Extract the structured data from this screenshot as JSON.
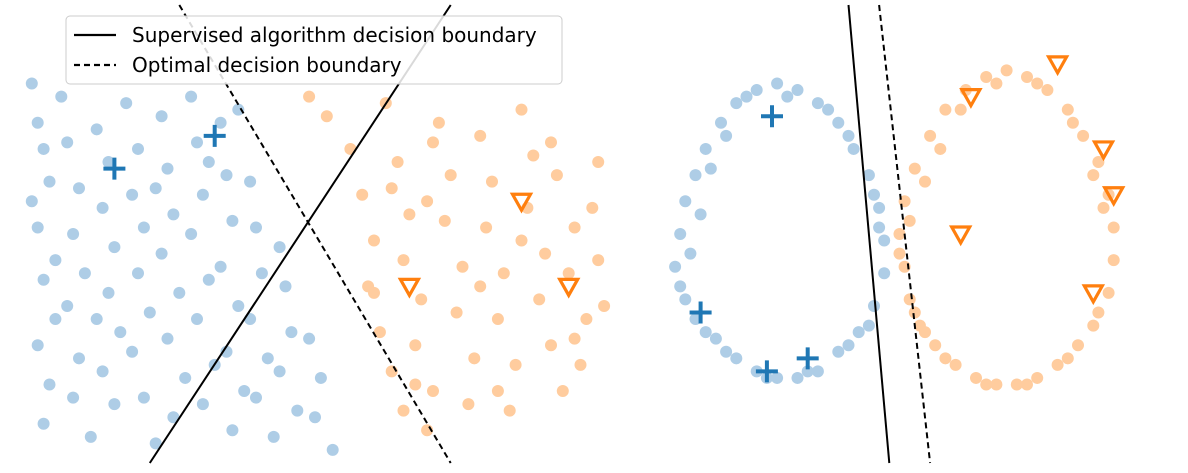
{
  "colors": {
    "class_a_light": "#aecde6",
    "class_a_dark": "#1f77b4",
    "class_b_light": "#ffcc9e",
    "class_b_dark": "#ff7f0e",
    "boundary": "#000000"
  },
  "legend": {
    "supervised_label": "Supervised algorithm decision boundary",
    "optimal_label": "Optimal decision boundary",
    "placement": "top-left of left panel"
  },
  "chart_data": [
    {
      "type": "scatter",
      "panel": "left",
      "grid": false,
      "axes_visible": false,
      "xlim": [
        0,
        10
      ],
      "ylim": [
        0,
        7
      ],
      "series": [
        {
          "marker": "circle",
          "class": "a-unlabeled",
          "points": [
            [
              0.2,
              5.8
            ],
            [
              0.3,
              5.2
            ],
            [
              0.4,
              4.8
            ],
            [
              0.5,
              4.3
            ],
            [
              0.3,
              3.6
            ],
            [
              0.4,
              2.8
            ],
            [
              0.6,
              2.2
            ],
            [
              0.3,
              1.8
            ],
            [
              0.5,
              1.2
            ],
            [
              0.4,
              0.6
            ],
            [
              0.7,
              5.6
            ],
            [
              0.8,
              4.9
            ],
            [
              1.0,
              4.2
            ],
            [
              0.9,
              3.5
            ],
            [
              1.1,
              2.9
            ],
            [
              0.8,
              2.4
            ],
            [
              1.0,
              1.6
            ],
            [
              0.9,
              1.0
            ],
            [
              1.2,
              0.4
            ],
            [
              1.3,
              5.1
            ],
            [
              1.5,
              4.6
            ],
            [
              1.4,
              3.9
            ],
            [
              1.6,
              3.3
            ],
            [
              1.5,
              2.6
            ],
            [
              1.7,
              2.0
            ],
            [
              1.4,
              1.4
            ],
            [
              1.6,
              0.9
            ],
            [
              1.8,
              5.5
            ],
            [
              2.0,
              4.8
            ],
            [
              1.9,
              4.1
            ],
            [
              2.1,
              3.6
            ],
            [
              2.0,
              2.9
            ],
            [
              2.2,
              2.3
            ],
            [
              1.9,
              1.7
            ],
            [
              2.1,
              1.0
            ],
            [
              2.3,
              0.3
            ],
            [
              2.4,
              5.3
            ],
            [
              2.5,
              4.5
            ],
            [
              2.6,
              3.8
            ],
            [
              2.4,
              3.2
            ],
            [
              2.7,
              2.6
            ],
            [
              2.5,
              1.9
            ],
            [
              2.8,
              1.3
            ],
            [
              2.6,
              0.7
            ],
            [
              2.9,
              5.6
            ],
            [
              3.0,
              4.9
            ],
            [
              3.1,
              4.1
            ],
            [
              2.9,
              3.5
            ],
            [
              3.2,
              2.8
            ],
            [
              3.0,
              2.2
            ],
            [
              3.3,
              1.5
            ],
            [
              3.1,
              0.9
            ],
            [
              3.4,
              5.2
            ],
            [
              3.5,
              4.4
            ],
            [
              3.6,
              3.7
            ],
            [
              3.4,
              3.0
            ],
            [
              3.7,
              2.4
            ],
            [
              3.5,
              1.7
            ],
            [
              3.8,
              1.1
            ],
            [
              3.6,
              0.5
            ],
            [
              3.9,
              4.3
            ],
            [
              4.0,
              3.6
            ],
            [
              4.1,
              2.9
            ],
            [
              3.9,
              2.2
            ],
            [
              4.2,
              1.6
            ],
            [
              4.0,
              1.0
            ],
            [
              4.3,
              0.4
            ],
            [
              4.4,
              3.3
            ],
            [
              4.5,
              2.7
            ],
            [
              4.6,
              2.0
            ],
            [
              4.4,
              1.4
            ],
            [
              4.7,
              0.8
            ],
            [
              4.9,
              1.9
            ],
            [
              5.1,
              1.3
            ],
            [
              5.0,
              0.7
            ],
            [
              5.3,
              0.2
            ],
            [
              0.2,
              4.0
            ],
            [
              0.6,
              3.1
            ],
            [
              1.3,
              2.2
            ],
            [
              2.3,
              4.2
            ],
            [
              3.2,
              4.6
            ],
            [
              3.7,
              5.4
            ]
          ]
        },
        {
          "marker": "circle",
          "class": "b-unlabeled",
          "points": [
            [
              4.9,
              5.6
            ],
            [
              5.2,
              5.3
            ],
            [
              5.6,
              4.8
            ],
            [
              5.8,
              4.1
            ],
            [
              6.0,
              3.4
            ],
            [
              5.9,
              2.7
            ],
            [
              6.1,
              2.0
            ],
            [
              6.3,
              1.4
            ],
            [
              6.5,
              0.8
            ],
            [
              6.2,
              5.5
            ],
            [
              6.4,
              4.6
            ],
            [
              6.6,
              3.8
            ],
            [
              6.5,
              3.1
            ],
            [
              6.8,
              2.5
            ],
            [
              6.7,
              1.8
            ],
            [
              7.0,
              1.1
            ],
            [
              6.9,
              0.5
            ],
            [
              7.1,
              5.2
            ],
            [
              7.3,
              4.4
            ],
            [
              7.2,
              3.7
            ],
            [
              7.5,
              3.0
            ],
            [
              7.4,
              2.3
            ],
            [
              7.7,
              1.6
            ],
            [
              7.6,
              0.9
            ],
            [
              7.8,
              5.0
            ],
            [
              8.0,
              4.3
            ],
            [
              7.9,
              3.6
            ],
            [
              8.2,
              2.9
            ],
            [
              8.1,
              2.2
            ],
            [
              8.4,
              1.5
            ],
            [
              8.3,
              0.8
            ],
            [
              8.5,
              5.4
            ],
            [
              8.7,
              4.7
            ],
            [
              8.6,
              3.9
            ],
            [
              8.9,
              3.2
            ],
            [
              8.8,
              2.5
            ],
            [
              9.0,
              1.8
            ],
            [
              9.2,
              1.1
            ],
            [
              9.1,
              4.4
            ],
            [
              9.4,
              3.6
            ],
            [
              9.3,
              2.9
            ],
            [
              9.6,
              2.2
            ],
            [
              9.5,
              1.5
            ],
            [
              9.7,
              3.9
            ],
            [
              9.8,
              3.1
            ],
            [
              9.9,
              2.4
            ],
            [
              9.8,
              4.6
            ],
            [
              6.0,
              2.6
            ],
            [
              6.9,
              4.0
            ],
            [
              7.8,
              2.7
            ],
            [
              8.5,
              3.4
            ],
            [
              9.0,
              4.9
            ],
            [
              7.0,
              4.9
            ],
            [
              6.3,
              4.2
            ],
            [
              6.7,
              1.2
            ],
            [
              8.1,
              1.1
            ],
            [
              9.4,
              1.9
            ]
          ]
        },
        {
          "marker": "plus",
          "class": "a-labeled",
          "points": [
            [
              1.6,
              4.5
            ],
            [
              3.3,
              5.0
            ]
          ]
        },
        {
          "marker": "triangle-down",
          "class": "b-labeled",
          "points": [
            [
              8.5,
              4.0
            ],
            [
              6.6,
              2.7
            ],
            [
              9.3,
              2.7
            ]
          ]
        }
      ],
      "lines": [
        {
          "style": "solid",
          "from": [
            2.2,
            0.0
          ],
          "to": [
            7.3,
            7.0
          ]
        },
        {
          "style": "dashed",
          "from": [
            2.7,
            7.0
          ],
          "to": [
            7.3,
            0.0
          ]
        }
      ]
    },
    {
      "type": "scatter",
      "panel": "right",
      "grid": false,
      "axes_visible": false,
      "xlim": [
        0,
        10
      ],
      "ylim": [
        0,
        7
      ],
      "series": [
        {
          "marker": "circle",
          "class": "a-unlabeled",
          "points": [
            [
              0.1,
              3.0
            ],
            [
              0.2,
              3.5
            ],
            [
              0.3,
              4.0
            ],
            [
              0.5,
              4.4
            ],
            [
              0.7,
              4.8
            ],
            [
              1.0,
              5.2
            ],
            [
              1.3,
              5.5
            ],
            [
              1.7,
              5.7
            ],
            [
              2.1,
              5.8
            ],
            [
              2.5,
              5.7
            ],
            [
              2.9,
              5.5
            ],
            [
              3.3,
              5.2
            ],
            [
              3.6,
              4.8
            ],
            [
              3.9,
              4.4
            ],
            [
              4.1,
              3.9
            ],
            [
              4.2,
              3.4
            ],
            [
              4.2,
              2.9
            ],
            [
              4.0,
              2.4
            ],
            [
              3.7,
              2.0
            ],
            [
              3.3,
              1.7
            ],
            [
              2.9,
              1.4
            ],
            [
              2.5,
              1.3
            ],
            [
              2.1,
              1.3
            ],
            [
              1.7,
              1.4
            ],
            [
              1.3,
              1.6
            ],
            [
              0.9,
              1.9
            ],
            [
              0.5,
              2.2
            ],
            [
              0.3,
              2.5
            ],
            [
              0.4,
              3.2
            ],
            [
              0.6,
              3.8
            ],
            [
              0.8,
              4.5
            ],
            [
              1.1,
              5.0
            ],
            [
              1.5,
              5.6
            ],
            [
              2.3,
              5.6
            ],
            [
              3.1,
              5.4
            ],
            [
              3.5,
              5.0
            ],
            [
              4.0,
              4.1
            ],
            [
              4.1,
              3.6
            ],
            [
              3.9,
              2.1
            ],
            [
              3.5,
              1.8
            ],
            [
              2.7,
              1.4
            ],
            [
              1.9,
              1.3
            ],
            [
              1.1,
              1.7
            ],
            [
              0.7,
              2.0
            ],
            [
              0.2,
              2.7
            ]
          ]
        },
        {
          "marker": "circle",
          "class": "b-unlabeled",
          "points": [
            [
              4.5,
              3.5
            ],
            [
              4.6,
              4.0
            ],
            [
              4.8,
              4.5
            ],
            [
              5.1,
              5.0
            ],
            [
              5.4,
              5.4
            ],
            [
              5.8,
              5.7
            ],
            [
              6.2,
              5.9
            ],
            [
              6.6,
              6.0
            ],
            [
              7.0,
              5.9
            ],
            [
              7.4,
              5.7
            ],
            [
              7.8,
              5.4
            ],
            [
              8.1,
              5.0
            ],
            [
              8.4,
              4.6
            ],
            [
              8.6,
              4.1
            ],
            [
              8.7,
              3.6
            ],
            [
              8.7,
              3.1
            ],
            [
              8.6,
              2.6
            ],
            [
              8.3,
              2.1
            ],
            [
              8.0,
              1.8
            ],
            [
              7.6,
              1.5
            ],
            [
              7.2,
              1.3
            ],
            [
              6.8,
              1.2
            ],
            [
              6.4,
              1.2
            ],
            [
              6.0,
              1.3
            ],
            [
              5.6,
              1.5
            ],
            [
              5.2,
              1.8
            ],
            [
              4.9,
              2.1
            ],
            [
              4.7,
              2.5
            ],
            [
              4.6,
              3.0
            ],
            [
              4.7,
              3.7
            ],
            [
              5.0,
              4.3
            ],
            [
              5.3,
              4.8
            ],
            [
              5.7,
              5.4
            ],
            [
              6.4,
              5.8
            ],
            [
              7.2,
              5.8
            ],
            [
              7.9,
              5.2
            ],
            [
              8.3,
              4.4
            ],
            [
              8.5,
              3.9
            ],
            [
              8.4,
              2.3
            ],
            [
              7.8,
              1.6
            ],
            [
              7.0,
              1.2
            ],
            [
              6.2,
              1.2
            ],
            [
              5.4,
              1.6
            ],
            [
              4.8,
              2.3
            ],
            [
              5.0,
              2.0
            ],
            [
              4.5,
              3.2
            ]
          ]
        },
        {
          "marker": "plus",
          "class": "a-labeled",
          "points": [
            [
              2.0,
              5.3
            ],
            [
              0.6,
              2.3
            ],
            [
              1.9,
              1.4
            ],
            [
              2.7,
              1.6
            ]
          ]
        },
        {
          "marker": "triangle-down",
          "class": "b-labeled",
          "points": [
            [
              5.9,
              5.6
            ],
            [
              7.6,
              6.1
            ],
            [
              8.5,
              4.8
            ],
            [
              8.7,
              4.1
            ],
            [
              5.7,
              3.5
            ],
            [
              8.3,
              2.6
            ]
          ]
        }
      ],
      "lines": [
        {
          "style": "solid",
          "from": [
            3.5,
            7.0
          ],
          "to": [
            4.3,
            0.0
          ]
        },
        {
          "style": "dashed",
          "from": [
            4.1,
            7.0
          ],
          "to": [
            5.1,
            0.0
          ]
        }
      ]
    }
  ]
}
